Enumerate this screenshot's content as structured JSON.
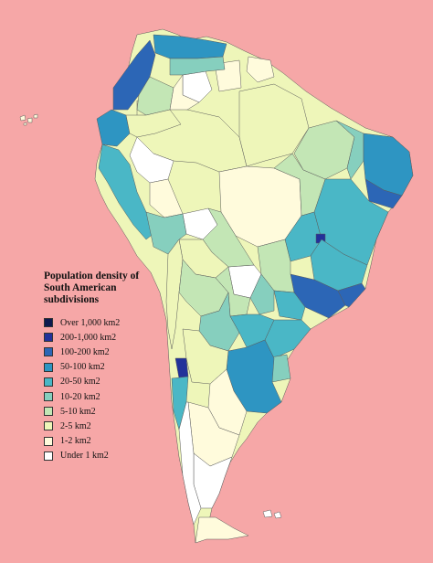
{
  "legend": {
    "title_line1": "Population density of",
    "title_line2": "South American",
    "title_line3": "subdivisions",
    "classes": [
      {
        "label": "Over 1,000 km2",
        "color": "#0d1a4f"
      },
      {
        "label": "200-1,000 km2",
        "color": "#22319a"
      },
      {
        "label": "100-200 km2",
        "color": "#2c66b6"
      },
      {
        "label": "50-100 km2",
        "color": "#2e95c2"
      },
      {
        "label": "20-50 km2",
        "color": "#4ab7c6"
      },
      {
        "label": "10-20 km2",
        "color": "#86cfbe"
      },
      {
        "label": "5-10 km2",
        "color": "#c3e6b5"
      },
      {
        "label": "2-5 km2",
        "color": "#eef6b9"
      },
      {
        "label": "1-2 km2",
        "color": "#fffbdc"
      },
      {
        "label": "Under 1 km2",
        "color": "#ffffff"
      }
    ]
  },
  "colors": {
    "ocean": "#f6a7a7",
    "border": "#5a5a5a"
  }
}
